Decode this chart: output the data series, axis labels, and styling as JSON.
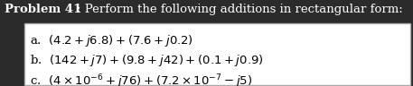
{
  "title_bold": "Problem 41",
  "title_normal": ": Perform the following additions in rectangular form:",
  "line_a": "a.  $(4.2 + j6.8) + (7.6 + j0.2)$",
  "line_b": "b.  $(142 + j7) + (9.8 + j42) + (0.1 + j0.9)$",
  "line_c": "c.  $(4 \\times 10^{-6} + j76) + (7.2 \\times 10^{-7} - j5)$",
  "background_color": "#2b2b2b",
  "title_text_color": "#ffffff",
  "box_facecolor": "#ffffff",
  "box_edgecolor": "#aaaaaa",
  "body_text_color": "#000000",
  "font_size": 9.5,
  "fig_width": 4.57,
  "fig_height": 0.96,
  "dpi": 100
}
